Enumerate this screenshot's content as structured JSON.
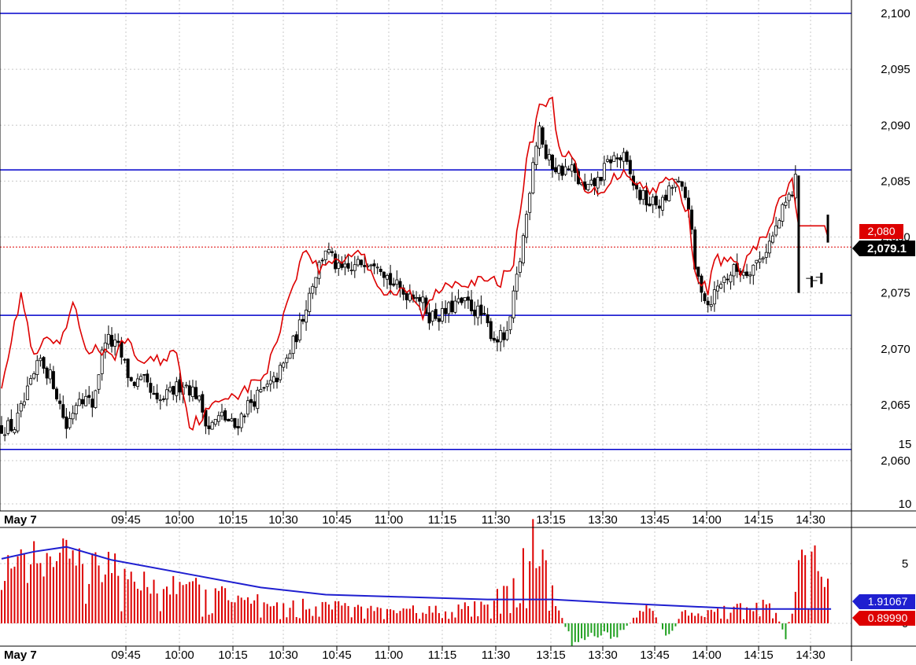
{
  "chart_data": [
    {
      "type": "candlestick",
      "date_label": "May 7",
      "x_ticks": [
        "09:45",
        "10:00",
        "10:15",
        "10:30",
        "10:45",
        "11:00",
        "11:15",
        "11:30",
        "13:15",
        "13:30",
        "13:45",
        "14:00",
        "14:15",
        "14:30"
      ],
      "y_ticks": [
        "2,060",
        "2,065",
        "2,070",
        "2,075",
        "2,080",
        "2,085",
        "2,090",
        "2,095",
        "2,100"
      ],
      "ylim": [
        2055,
        2101.2
      ],
      "grid": true,
      "price_scale": "right",
      "horizontal_levels": [
        2100,
        2086,
        2073,
        2061
      ],
      "last_price_label": "2,079.1",
      "last_price": 2079.1,
      "red_line_label": "2,080",
      "red_line_value": 2080,
      "candle_anchors": [
        [
          0,
          2063
        ],
        [
          4,
          2063
        ],
        [
          8,
          2066
        ],
        [
          12,
          2069
        ],
        [
          16,
          2067
        ],
        [
          20,
          2063
        ],
        [
          24,
          2066
        ],
        [
          28,
          2065
        ],
        [
          32,
          2071
        ],
        [
          36,
          2070
        ],
        [
          40,
          2067
        ],
        [
          44,
          2067
        ],
        [
          48,
          2065
        ],
        [
          52,
          2066
        ],
        [
          56,
          2067
        ],
        [
          60,
          2066
        ],
        [
          64,
          2063
        ],
        [
          68,
          2064
        ],
        [
          72,
          2063
        ],
        [
          76,
          2065
        ],
        [
          80,
          2066
        ],
        [
          84,
          2067
        ],
        [
          88,
          2069
        ],
        [
          92,
          2072
        ],
        [
          96,
          2076
        ],
        [
          100,
          2079
        ],
        [
          104,
          2077
        ],
        [
          108,
          2077
        ],
        [
          112,
          2078
        ],
        [
          116,
          2078
        ],
        [
          120,
          2076
        ],
        [
          124,
          2075
        ],
        [
          128,
          2075
        ],
        [
          132,
          2073
        ],
        [
          136,
          2073
        ],
        [
          140,
          2074
        ],
        [
          144,
          2074
        ],
        [
          148,
          2073
        ],
        [
          152,
          2071
        ],
        [
          156,
          2071
        ],
        [
          160,
          2078
        ],
        [
          162,
          2082
        ],
        [
          164,
          2087
        ],
        [
          166,
          2090
        ],
        [
          168,
          2087
        ],
        [
          172,
          2086
        ],
        [
          176,
          2086
        ],
        [
          180,
          2084
        ],
        [
          184,
          2085
        ],
        [
          188,
          2087
        ],
        [
          192,
          2087
        ],
        [
          196,
          2084
        ],
        [
          200,
          2083
        ],
        [
          204,
          2083
        ],
        [
          208,
          2085
        ],
        [
          212,
          2083
        ],
        [
          214,
          2077
        ],
        [
          218,
          2074
        ],
        [
          222,
          2076
        ],
        [
          226,
          2077
        ],
        [
          230,
          2077
        ],
        [
          234,
          2078
        ],
        [
          238,
          2080
        ],
        [
          242,
          2083
        ],
        [
          244,
          2084
        ],
        [
          245,
          2085
        ],
        [
          246,
          2076
        ]
      ],
      "red_line_anchors": [
        [
          0,
          2067
        ],
        [
          4,
          2072
        ],
        [
          6,
          2075
        ],
        [
          10,
          2069
        ],
        [
          14,
          2071
        ],
        [
          18,
          2070
        ],
        [
          22,
          2074
        ],
        [
          26,
          2070
        ],
        [
          30,
          2070
        ],
        [
          34,
          2069
        ],
        [
          38,
          2071
        ],
        [
          42,
          2069
        ],
        [
          46,
          2069
        ],
        [
          50,
          2069
        ],
        [
          54,
          2070
        ],
        [
          58,
          2063
        ],
        [
          62,
          2064
        ],
        [
          66,
          2065
        ],
        [
          70,
          2066
        ],
        [
          74,
          2066
        ],
        [
          78,
          2067
        ],
        [
          82,
          2068
        ],
        [
          86,
          2072
        ],
        [
          90,
          2076
        ],
        [
          94,
          2079
        ],
        [
          98,
          2077
        ],
        [
          102,
          2078
        ],
        [
          106,
          2078
        ],
        [
          110,
          2079
        ],
        [
          114,
          2077
        ],
        [
          118,
          2075
        ],
        [
          122,
          2075
        ],
        [
          126,
          2075
        ],
        [
          130,
          2073
        ],
        [
          134,
          2075
        ],
        [
          138,
          2076
        ],
        [
          142,
          2076
        ],
        [
          146,
          2076
        ],
        [
          150,
          2076
        ],
        [
          154,
          2076
        ],
        [
          158,
          2078
        ],
        [
          160,
          2082
        ],
        [
          162,
          2087
        ],
        [
          164,
          2089
        ],
        [
          166,
          2092
        ],
        [
          168,
          2092
        ],
        [
          170,
          2092
        ],
        [
          172,
          2088
        ],
        [
          176,
          2087
        ],
        [
          180,
          2084
        ],
        [
          184,
          2084
        ],
        [
          188,
          2085
        ],
        [
          192,
          2086
        ],
        [
          196,
          2085
        ],
        [
          200,
          2084
        ],
        [
          204,
          2085
        ],
        [
          208,
          2085
        ],
        [
          212,
          2082
        ],
        [
          214,
          2077
        ],
        [
          216,
          2076
        ],
        [
          218,
          2075
        ],
        [
          220,
          2078
        ],
        [
          224,
          2078
        ],
        [
          228,
          2077
        ],
        [
          232,
          2079
        ],
        [
          236,
          2080
        ],
        [
          240,
          2083
        ],
        [
          244,
          2085
        ],
        [
          246,
          2081
        ],
        [
          254,
          2081
        ],
        [
          255,
          2080
        ]
      ],
      "post_gap_bars": [
        [
          246,
          2085.5,
          2075
        ],
        [
          250,
          2076.5,
          2075.5
        ],
        [
          253,
          2076.8,
          2075.8
        ],
        [
          255,
          2082,
          2079.5
        ]
      ]
    },
    {
      "type": "bar",
      "indicator": "volume-histogram",
      "x_ticks": [
        "09:45",
        "10:00",
        "10:15",
        "10:30",
        "10:45",
        "11:00",
        "11:15",
        "11:30",
        "13:15",
        "13:30",
        "13:45",
        "14:00",
        "14:15",
        "14:30"
      ],
      "y_ticks": [
        "15",
        "10",
        "5",
        "0"
      ],
      "ylim": [
        -4,
        16.5
      ],
      "series": [
        {
          "name": "",
          "values_label": "1.91067",
          "last_value": 1.91067,
          "color": "#1f1fd0"
        },
        {
          "name": "",
          "values_label": "0.89990",
          "last_value": 0.8999,
          "color": "#dd0000"
        }
      ],
      "bar_anchors": [
        [
          0,
          4.5
        ],
        [
          10,
          5.8
        ],
        [
          20,
          6.0
        ],
        [
          40,
          4.5
        ],
        [
          60,
          3.2
        ],
        [
          80,
          2.0
        ],
        [
          100,
          1.8
        ],
        [
          115,
          1.6
        ],
        [
          130,
          1.2
        ],
        [
          150,
          1.8
        ],
        [
          158,
          3.5
        ],
        [
          162,
          6.5
        ],
        [
          164,
          8.5
        ],
        [
          168,
          5.0
        ],
        [
          172,
          1.2
        ],
        [
          176,
          -1.8
        ],
        [
          180,
          -1.2
        ],
        [
          184,
          -1.0
        ],
        [
          190,
          -1.2
        ],
        [
          196,
          0.8
        ],
        [
          200,
          1.5
        ],
        [
          206,
          -1.5
        ],
        [
          210,
          1.0
        ],
        [
          216,
          0.8
        ],
        [
          222,
          1.2
        ],
        [
          230,
          1.5
        ],
        [
          238,
          1.8
        ],
        [
          242,
          -1.5
        ],
        [
          246,
          6.0
        ],
        [
          252,
          6.0
        ],
        [
          255,
          4.0
        ]
      ],
      "average_line": [
        [
          0,
          5.4
        ],
        [
          10,
          6.0
        ],
        [
          20,
          6.4
        ],
        [
          34,
          5.3
        ],
        [
          60,
          4.0
        ],
        [
          80,
          3.0
        ],
        [
          100,
          2.4
        ],
        [
          150,
          2.0
        ],
        [
          170,
          2.0
        ],
        [
          190,
          1.7
        ],
        [
          230,
          1.2
        ],
        [
          256,
          1.2
        ]
      ]
    }
  ],
  "colors": {
    "up_candle": "#ffffff",
    "down_candle": "#000000",
    "level_line": "#0000cc",
    "red_line": "#dd0000",
    "grid": "#c8c8c8",
    "positive_bar": "#dd0000",
    "negative_bar": "#20a020",
    "volume_average": "#1f1fd0"
  }
}
